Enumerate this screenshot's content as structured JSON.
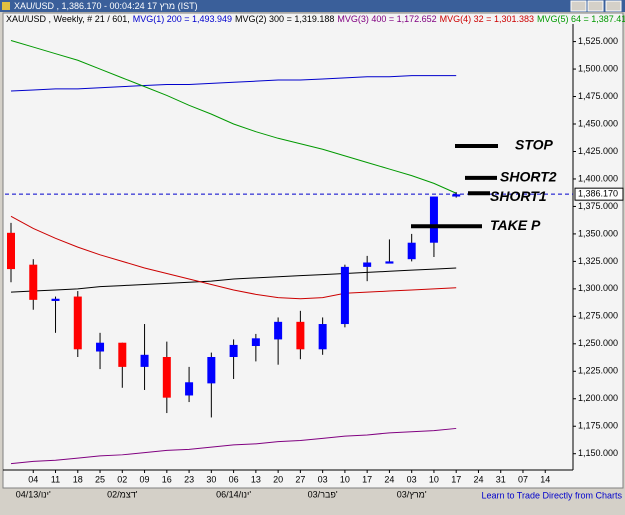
{
  "window_title": "XAU/USD , 1,386.170 - 00:04:24  17 מרץ (IST)",
  "footer_link": "Learn to Trade Directly from Charts",
  "chart_data": {
    "type": "candlestick",
    "title": "XAU/USD , Weekly, # 21 / 601,",
    "categories": [
      null,
      "04",
      "11",
      "18",
      "25",
      "02",
      "09",
      "16",
      "23",
      "30",
      "06",
      "13",
      "20",
      "27",
      "03",
      "10",
      "17",
      "24",
      "03",
      "10",
      "17",
      "24",
      "31",
      "07",
      "14"
    ],
    "month_labels": [
      null,
      "04/13/ינו'",
      null,
      null,
      null,
      "02/דצמ'",
      null,
      null,
      null,
      null,
      "06/14/ינו'",
      null,
      null,
      null,
      "03/פבר'",
      null,
      null,
      null,
      "03/מרץ'",
      null,
      null,
      null,
      null,
      null,
      null
    ],
    "open": [
      1351,
      1322,
      1289,
      1293,
      1243,
      1251,
      1229,
      1238,
      1203,
      1214,
      1238,
      1248,
      1254,
      1270,
      1245,
      1268,
      1320,
      1323,
      1327,
      1342,
      1384,
      null,
      null,
      null,
      null
    ],
    "high": [
      1360,
      1327,
      1293,
      1298,
      1260,
      1251,
      1268,
      1252,
      1229,
      1242,
      1254,
      1259,
      1274,
      1280,
      1274,
      1322,
      1330,
      1345,
      1350,
      1384,
      1388,
      null,
      null,
      null,
      null
    ],
    "low": [
      1306,
      1281,
      1260,
      1238,
      1227,
      1210,
      1208,
      1187,
      1197,
      1183,
      1218,
      1234,
      1231,
      1236,
      1240,
      1265,
      1307,
      1324,
      1325,
      1329,
      1383,
      null,
      null,
      null,
      null
    ],
    "close": [
      1318,
      1290,
      1291,
      1245,
      1251,
      1229,
      1240,
      1201,
      1215,
      1238,
      1249,
      1255,
      1270,
      1245,
      1268,
      1320,
      1324,
      1325,
      1342,
      1384,
      1386,
      null,
      null,
      null,
      null
    ],
    "up_color": "#0000ff",
    "down_color": "#ff0000",
    "series": [
      {
        "name": "MVG(1) 200 = 1,493.949",
        "color": "#0000cc",
        "values": [
          1480,
          1481,
          1482,
          1482,
          1483,
          1484,
          1485,
          1486,
          1486,
          1487,
          1488,
          1489,
          1490,
          1490,
          1491,
          1492,
          1493,
          1493,
          1494,
          1494,
          1494,
          null,
          null,
          null,
          null
        ]
      },
      {
        "name": "MVG(2) 300 = 1,319.188",
        "color": "#000000",
        "values": [
          1297,
          1298,
          1299,
          1300,
          1302,
          1303,
          1304,
          1305,
          1306,
          1307,
          1309,
          1310,
          1311,
          1312,
          1313,
          1314,
          1315,
          1316,
          1317,
          1318,
          1319,
          null,
          null,
          null,
          null
        ]
      },
      {
        "name": "MVG(3) 400 = 1,172.652",
        "color": "#800080",
        "values": [
          1141,
          1143,
          1144,
          1146,
          1148,
          1149,
          1151,
          1153,
          1154,
          1156,
          1158,
          1159,
          1161,
          1162,
          1164,
          1166,
          1167,
          1169,
          1170,
          1171,
          1173,
          null,
          null,
          null,
          null
        ]
      },
      {
        "name": "MVG(4) 32 = 1,301.383",
        "color": "#cc0000",
        "values": [
          1366,
          1355,
          1346,
          1338,
          1331,
          1325,
          1319,
          1314,
          1309,
          1304,
          1299,
          1295,
          1292,
          1291,
          1292,
          1296,
          1297,
          1298,
          1299,
          1300,
          1301,
          null,
          null,
          null,
          null
        ]
      },
      {
        "name": "MVG(5) 64 = 1,387.414",
        "color": "#009900",
        "values": [
          1526,
          1520,
          1514,
          1508,
          1500,
          1492,
          1484,
          1476,
          1467,
          1459,
          1450,
          1443,
          1437,
          1432,
          1427,
          1421,
          1415,
          1409,
          1403,
          1396,
          1387,
          null,
          null,
          null,
          null
        ]
      }
    ],
    "last_price": {
      "value": 1386.17,
      "label": "1,386.170"
    },
    "annotations": [
      {
        "text": "STOP",
        "value": 1430
      },
      {
        "text": "SHORT2",
        "value": 1401
      },
      {
        "text": "SHORT1",
        "value": 1387
      },
      {
        "text": "TAKE P",
        "value": 1357
      }
    ],
    "ylim": [
      1137,
      1541
    ],
    "yticks": [
      {
        "value": 1150,
        "label": "1,150.000"
      },
      {
        "value": 1175,
        "label": "1,175.000"
      },
      {
        "value": 1200,
        "label": "1,200.000"
      },
      {
        "value": 1225,
        "label": "1,225.000"
      },
      {
        "value": 1250,
        "label": "1,250.000"
      },
      {
        "value": 1275,
        "label": "1,275.000"
      },
      {
        "value": 1300,
        "label": "1,300.000"
      },
      {
        "value": 1325,
        "label": "1,325.000"
      },
      {
        "value": 1350,
        "label": "1,350.000"
      },
      {
        "value": 1375,
        "label": "1,375.000"
      },
      {
        "value": 1400,
        "label": "1,400.000"
      },
      {
        "value": 1425,
        "label": "1,425.000"
      },
      {
        "value": 1450,
        "label": "1,450.000"
      },
      {
        "value": 1475,
        "label": "1,475.000"
      },
      {
        "value": 1500,
        "label": "1,500.000"
      },
      {
        "value": 1525,
        "label": "1,525.000"
      }
    ],
    "grid": false
  }
}
